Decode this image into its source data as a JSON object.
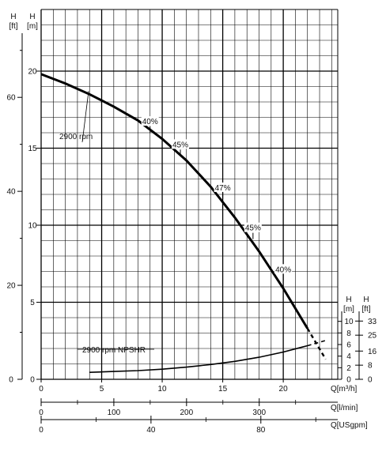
{
  "chart_data": {
    "type": "line",
    "left_axis_labels": {
      "h_ft": [
        "H",
        "[ft]"
      ],
      "h_m": [
        "H",
        "[m]"
      ]
    },
    "right_axis_labels": {
      "h_m": [
        "H",
        "[m]"
      ],
      "h_ft": [
        "H",
        "[ft]"
      ]
    },
    "x_axes": [
      {
        "id": "q_m3h",
        "label": "Q[m³/h]",
        "range": [
          0,
          24.5
        ],
        "ticks": [
          0,
          5,
          10,
          15,
          20
        ],
        "tick_labels": [
          "0",
          "5",
          "10",
          "15",
          "20"
        ]
      },
      {
        "id": "q_lmin",
        "label": "Q[l/min]",
        "range": [
          0,
          408
        ],
        "ticks": [
          0,
          100,
          200,
          300
        ],
        "tick_labels": [
          "0",
          "100",
          "200",
          "300"
        ]
      },
      {
        "id": "q_usgpm",
        "label": "Q[USgpm]",
        "range": [
          0,
          108
        ],
        "ticks": [
          0,
          40,
          80
        ],
        "tick_labels": [
          "0",
          "40",
          "80"
        ]
      }
    ],
    "y_axes": [
      {
        "id": "h_m",
        "range": [
          0,
          24
        ],
        "ticks": [
          0,
          5,
          10,
          15,
          20
        ],
        "tick_labels": [
          "0",
          "5",
          "10",
          "15",
          "20"
        ]
      },
      {
        "id": "h_ft",
        "range": [
          0,
          78.7
        ],
        "ticks": [
          0,
          20,
          40,
          60
        ],
        "tick_labels": [
          "0",
          "20",
          "40",
          "60"
        ]
      },
      {
        "id": "npshr_m",
        "range": [
          0,
          12
        ],
        "ticks": [
          0,
          2,
          4,
          6,
          8,
          10
        ],
        "tick_labels": [
          "0",
          "2",
          "4",
          "6",
          "8",
          "10"
        ]
      },
      {
        "id": "npshr_ft",
        "range": [
          0,
          39.4
        ],
        "ticks": [
          0,
          8,
          16,
          25,
          33
        ],
        "tick_labels": [
          "0",
          "8",
          "16",
          "25",
          "33"
        ]
      }
    ],
    "grid": true,
    "series": [
      {
        "name": "2900 rpm",
        "axis": "h_m",
        "x": [
          0,
          2,
          4,
          6,
          8,
          10,
          12,
          14,
          16,
          18,
          20,
          22
        ],
        "y": [
          19.8,
          19.2,
          18.5,
          17.7,
          16.8,
          15.6,
          14.2,
          12.5,
          10.5,
          8.3,
          5.9,
          3.3
        ]
      },
      {
        "name": "2900 rpm NPSHR",
        "axis": "npshr_m",
        "x": [
          4,
          6,
          8,
          10,
          12,
          14,
          16,
          18,
          20,
          22
        ],
        "y": [
          1.2,
          1.35,
          1.5,
          1.75,
          2.1,
          2.55,
          3.1,
          3.8,
          4.7,
          5.8
        ]
      }
    ],
    "dashed_extensions": [
      {
        "series": "2900 rpm",
        "x": [
          22,
          23.5
        ],
        "y": [
          3.3,
          1.3
        ]
      },
      {
        "series": "2900 rpm NPSHR",
        "x": [
          22,
          23.5
        ],
        "y": [
          5.8,
          6.7
        ]
      }
    ],
    "efficiency_labels": [
      {
        "text": "40%",
        "x": 9,
        "y": 16.2
      },
      {
        "text": "45%",
        "x": 11.5,
        "y": 14.7
      },
      {
        "text": "47%",
        "x": 15,
        "y": 11.9
      },
      {
        "text": "45%",
        "x": 17.5,
        "y": 9.3
      },
      {
        "text": "40%",
        "x": 20,
        "y": 6.6
      }
    ]
  }
}
